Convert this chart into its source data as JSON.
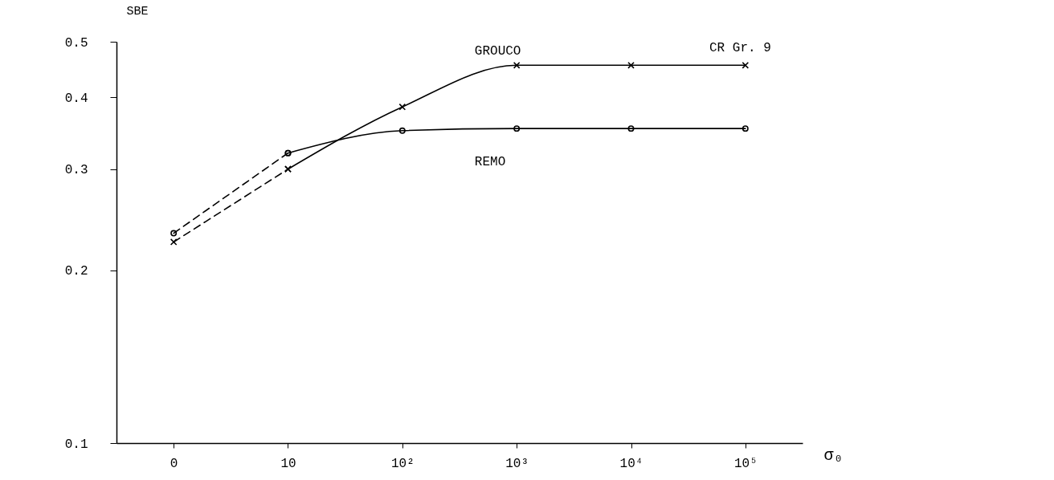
{
  "chart_data": {
    "type": "line",
    "xlabel": "σ₀",
    "ylabel": "SBE",
    "categories": [
      "0",
      "10",
      "10²",
      "10³",
      "10⁴",
      "10⁵"
    ],
    "series": [
      {
        "name": "GROUCO",
        "color": "#000000",
        "marker": "cross",
        "line_style": "solid",
        "values": [
          null,
          0.3,
          0.385,
          0.455,
          0.455,
          0.455
        ]
      },
      {
        "color": "#000000",
        "marker": "cross",
        "line_style": "dashed",
        "values": [
          0.224,
          0.3,
          null,
          null,
          null,
          null
        ]
      },
      {
        "name": "REMO",
        "color": "#000000",
        "marker": "circle",
        "line_style": "solid",
        "values": [
          null,
          0.32,
          0.35,
          0.353,
          0.353,
          0.353
        ]
      },
      {
        "color": "#000000",
        "marker": "circle",
        "line_style": "dashed",
        "values": [
          0.232,
          0.32,
          null,
          null,
          null,
          null
        ]
      }
    ],
    "log": "y",
    "ylim": [
      0.1,
      0.5
    ],
    "yticks": [
      0.1,
      0.2,
      0.3,
      0.4,
      0.5
    ],
    "grid": false,
    "annotations": [
      "CR Gr. 9"
    ]
  }
}
